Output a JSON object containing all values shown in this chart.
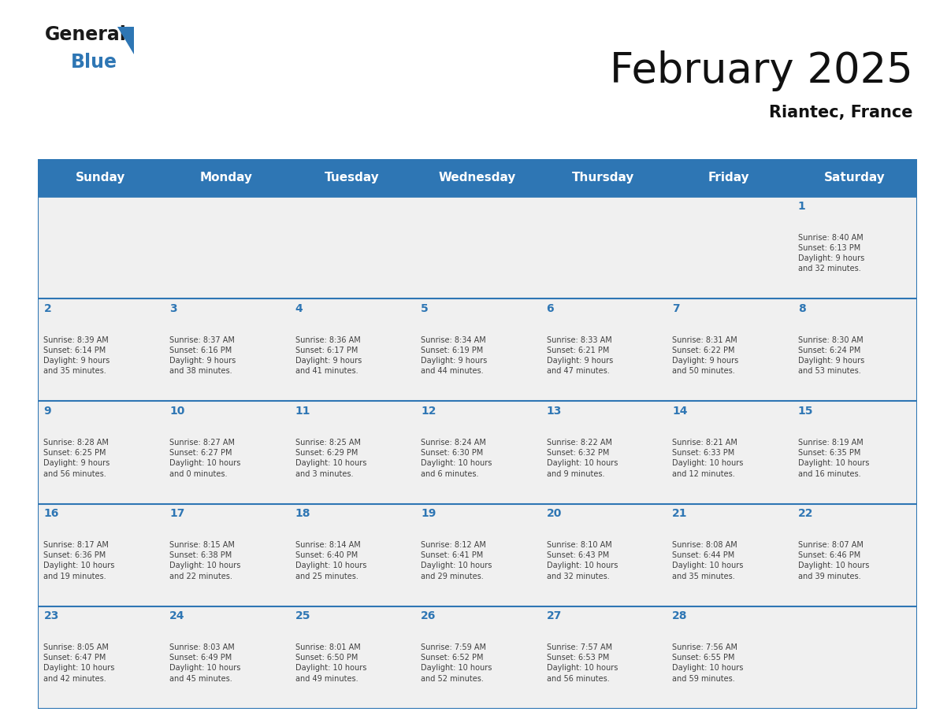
{
  "title": "February 2025",
  "subtitle": "Riantec, France",
  "header_color": "#2E76B4",
  "header_text_color": "#FFFFFF",
  "day_names": [
    "Sunday",
    "Monday",
    "Tuesday",
    "Wednesday",
    "Thursday",
    "Friday",
    "Saturday"
  ],
  "background_color": "#FFFFFF",
  "cell_bg": "#F0F0F0",
  "day_number_color": "#2E76B4",
  "text_color": "#404040",
  "grid_color": "#2E76B4",
  "days": [
    {
      "day": 1,
      "col": 6,
      "row": 0,
      "sunrise": "8:40 AM",
      "sunset": "6:13 PM",
      "daylight": "9 hours and 32 minutes."
    },
    {
      "day": 2,
      "col": 0,
      "row": 1,
      "sunrise": "8:39 AM",
      "sunset": "6:14 PM",
      "daylight": "9 hours and 35 minutes."
    },
    {
      "day": 3,
      "col": 1,
      "row": 1,
      "sunrise": "8:37 AM",
      "sunset": "6:16 PM",
      "daylight": "9 hours and 38 minutes."
    },
    {
      "day": 4,
      "col": 2,
      "row": 1,
      "sunrise": "8:36 AM",
      "sunset": "6:17 PM",
      "daylight": "9 hours and 41 minutes."
    },
    {
      "day": 5,
      "col": 3,
      "row": 1,
      "sunrise": "8:34 AM",
      "sunset": "6:19 PM",
      "daylight": "9 hours and 44 minutes."
    },
    {
      "day": 6,
      "col": 4,
      "row": 1,
      "sunrise": "8:33 AM",
      "sunset": "6:21 PM",
      "daylight": "9 hours and 47 minutes."
    },
    {
      "day": 7,
      "col": 5,
      "row": 1,
      "sunrise": "8:31 AM",
      "sunset": "6:22 PM",
      "daylight": "9 hours and 50 minutes."
    },
    {
      "day": 8,
      "col": 6,
      "row": 1,
      "sunrise": "8:30 AM",
      "sunset": "6:24 PM",
      "daylight": "9 hours and 53 minutes."
    },
    {
      "day": 9,
      "col": 0,
      "row": 2,
      "sunrise": "8:28 AM",
      "sunset": "6:25 PM",
      "daylight": "9 hours and 56 minutes."
    },
    {
      "day": 10,
      "col": 1,
      "row": 2,
      "sunrise": "8:27 AM",
      "sunset": "6:27 PM",
      "daylight": "10 hours and 0 minutes."
    },
    {
      "day": 11,
      "col": 2,
      "row": 2,
      "sunrise": "8:25 AM",
      "sunset": "6:29 PM",
      "daylight": "10 hours and 3 minutes."
    },
    {
      "day": 12,
      "col": 3,
      "row": 2,
      "sunrise": "8:24 AM",
      "sunset": "6:30 PM",
      "daylight": "10 hours and 6 minutes."
    },
    {
      "day": 13,
      "col": 4,
      "row": 2,
      "sunrise": "8:22 AM",
      "sunset": "6:32 PM",
      "daylight": "10 hours and 9 minutes."
    },
    {
      "day": 14,
      "col": 5,
      "row": 2,
      "sunrise": "8:21 AM",
      "sunset": "6:33 PM",
      "daylight": "10 hours and 12 minutes."
    },
    {
      "day": 15,
      "col": 6,
      "row": 2,
      "sunrise": "8:19 AM",
      "sunset": "6:35 PM",
      "daylight": "10 hours and 16 minutes."
    },
    {
      "day": 16,
      "col": 0,
      "row": 3,
      "sunrise": "8:17 AM",
      "sunset": "6:36 PM",
      "daylight": "10 hours and 19 minutes."
    },
    {
      "day": 17,
      "col": 1,
      "row": 3,
      "sunrise": "8:15 AM",
      "sunset": "6:38 PM",
      "daylight": "10 hours and 22 minutes."
    },
    {
      "day": 18,
      "col": 2,
      "row": 3,
      "sunrise": "8:14 AM",
      "sunset": "6:40 PM",
      "daylight": "10 hours and 25 minutes."
    },
    {
      "day": 19,
      "col": 3,
      "row": 3,
      "sunrise": "8:12 AM",
      "sunset": "6:41 PM",
      "daylight": "10 hours and 29 minutes."
    },
    {
      "day": 20,
      "col": 4,
      "row": 3,
      "sunrise": "8:10 AM",
      "sunset": "6:43 PM",
      "daylight": "10 hours and 32 minutes."
    },
    {
      "day": 21,
      "col": 5,
      "row": 3,
      "sunrise": "8:08 AM",
      "sunset": "6:44 PM",
      "daylight": "10 hours and 35 minutes."
    },
    {
      "day": 22,
      "col": 6,
      "row": 3,
      "sunrise": "8:07 AM",
      "sunset": "6:46 PM",
      "daylight": "10 hours and 39 minutes."
    },
    {
      "day": 23,
      "col": 0,
      "row": 4,
      "sunrise": "8:05 AM",
      "sunset": "6:47 PM",
      "daylight": "10 hours and 42 minutes."
    },
    {
      "day": 24,
      "col": 1,
      "row": 4,
      "sunrise": "8:03 AM",
      "sunset": "6:49 PM",
      "daylight": "10 hours and 45 minutes."
    },
    {
      "day": 25,
      "col": 2,
      "row": 4,
      "sunrise": "8:01 AM",
      "sunset": "6:50 PM",
      "daylight": "10 hours and 49 minutes."
    },
    {
      "day": 26,
      "col": 3,
      "row": 4,
      "sunrise": "7:59 AM",
      "sunset": "6:52 PM",
      "daylight": "10 hours and 52 minutes."
    },
    {
      "day": 27,
      "col": 4,
      "row": 4,
      "sunrise": "7:57 AM",
      "sunset": "6:53 PM",
      "daylight": "10 hours and 56 minutes."
    },
    {
      "day": 28,
      "col": 5,
      "row": 4,
      "sunrise": "7:56 AM",
      "sunset": "6:55 PM",
      "daylight": "10 hours and 59 minutes."
    }
  ]
}
